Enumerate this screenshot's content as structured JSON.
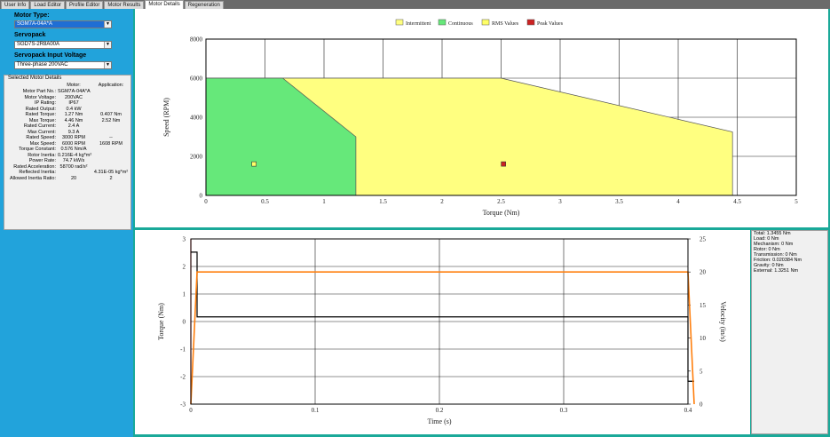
{
  "tabs": [
    {
      "label": "User Info"
    },
    {
      "label": "Load Editor"
    },
    {
      "label": "Profile Editor"
    },
    {
      "label": "Motor Results"
    },
    {
      "label": "Motor Details",
      "active": true
    },
    {
      "label": "Regeneration"
    }
  ],
  "left_panel": {
    "motor_type_label": "Motor Type:",
    "motor_type_value": "SGM7A-04A*A",
    "servopack_label": "Servopack",
    "servopack_value": "SGD7S-2R8A00A",
    "input_voltage_label": "Servopack Input Voltage",
    "input_voltage_value": "Three-phase 200VAC",
    "details_title": "Selected Motor Details",
    "col_motor": "Motor:",
    "col_application": "Application:",
    "rows": [
      {
        "key": "Motor Part No.:",
        "motor": "SGM7A-04A*A",
        "app": ""
      },
      {
        "key": "Motor Voltage:",
        "motor": "200VAC",
        "app": ""
      },
      {
        "key": "IP Rating:",
        "motor": "IP67",
        "app": ""
      },
      {
        "key": "Rated Output:",
        "motor": "0.4 kW",
        "app": ""
      },
      {
        "key": "Rated Torque:",
        "motor": "1.27 Nm",
        "app": "0.407 Nm"
      },
      {
        "key": "Max Torque:",
        "motor": "4.46 Nm",
        "app": "2.52 Nm"
      },
      {
        "key": "Rated Current:",
        "motor": "2.4 A",
        "app": ""
      },
      {
        "key": "Max Current:",
        "motor": "9.3 A",
        "app": ""
      },
      {
        "key": "Rated Speed:",
        "motor": "3000 RPM",
        "app": "--"
      },
      {
        "key": "Max Speed:",
        "motor": "6000 RPM",
        "app": "1608 RPM"
      },
      {
        "key": "Torque Constant:",
        "motor": "0.576 Nm/A",
        "app": ""
      },
      {
        "key": "Rotor Inertia:",
        "motor": "0.216E-4 kg*m²",
        "app": ""
      },
      {
        "key": "Power Rate:",
        "motor": "74.7 kW/s",
        "app": ""
      },
      {
        "key": "Rated Acceleration:",
        "motor": "58700 rad/s²",
        "app": ""
      },
      {
        "key": "Reflected Inertia:",
        "motor": "",
        "app": "4.31E-05 kg*m²"
      },
      {
        "key": "Allowed Inertia Ratio:",
        "motor": "20",
        "app": "2"
      }
    ]
  },
  "top_chart": {
    "type": "area",
    "legend": [
      {
        "label": "Intermittent",
        "color": "#ffff80"
      },
      {
        "label": "Continuous",
        "color": "#66e87a"
      },
      {
        "label": "RMS Values",
        "color": "#ffff66"
      },
      {
        "label": "Peak Values",
        "color": "#cc2222"
      }
    ],
    "xlabel": "Torque (Nm)",
    "ylabel": "Speed (RPM)",
    "xlim": [
      0,
      5
    ],
    "ylim": [
      0,
      8000
    ],
    "xticks": [
      "0",
      "0.5",
      "1",
      "1.5",
      "2",
      "2.5",
      "3",
      "3.5",
      "4",
      "4.5",
      "5"
    ],
    "yticks": [
      "0",
      "2000",
      "4000",
      "6000",
      "8000"
    ],
    "intermittent": [
      [
        0,
        0
      ],
      [
        0,
        6000
      ],
      [
        2.5,
        6000
      ],
      [
        4.46,
        3250
      ],
      [
        4.46,
        0
      ]
    ],
    "continuous": [
      [
        0,
        0
      ],
      [
        0,
        6000
      ],
      [
        0.65,
        6000
      ],
      [
        1.27,
        3000
      ],
      [
        1.27,
        0
      ]
    ],
    "rms_point": [
      0.407,
      1608
    ],
    "peak_point": [
      2.52,
      1608
    ]
  },
  "bottom_chart": {
    "type": "line",
    "xlabel": "Time (s)",
    "ylabel_left": "Torque (Nm)",
    "ylabel_right": "Velocity (in/s)",
    "xlim": [
      0,
      0.4
    ],
    "ylim_left": [
      -3,
      3
    ],
    "ylim_right": [
      0,
      25
    ],
    "xticks": [
      "0",
      "0.1",
      "0.2",
      "0.3",
      "0.4"
    ],
    "yticks_left": [
      "-3",
      "-2",
      "-1",
      "0",
      "1",
      "2",
      "3"
    ],
    "yticks_right": [
      "0",
      "5",
      "10",
      "15",
      "20",
      "25"
    ],
    "torque_series": {
      "color": "#000000",
      "points": [
        [
          0,
          2.52
        ],
        [
          0.005,
          2.52
        ],
        [
          0.005,
          0.17
        ],
        [
          0.4,
          0.17
        ],
        [
          0.4,
          -2.17
        ],
        [
          0.405,
          -2.17
        ]
      ]
    },
    "velocity_series": {
      "color": "#ff7f0e",
      "points": [
        [
          0,
          0
        ],
        [
          0.005,
          20
        ],
        [
          0.4,
          20
        ],
        [
          0.405,
          0
        ]
      ]
    },
    "red_marker_x": 0
  },
  "info_panel": {
    "lines": [
      "Total: 1.3455 Nm",
      "Load: 0 Nm",
      "Mechanism: 0 Nm",
      "Rotor: 0 Nm",
      "Transmission: 0 Nm",
      "Friction: 0.020384 Nm",
      "Gravity: 0 Nm",
      "External: 1.3251 Nm"
    ]
  }
}
